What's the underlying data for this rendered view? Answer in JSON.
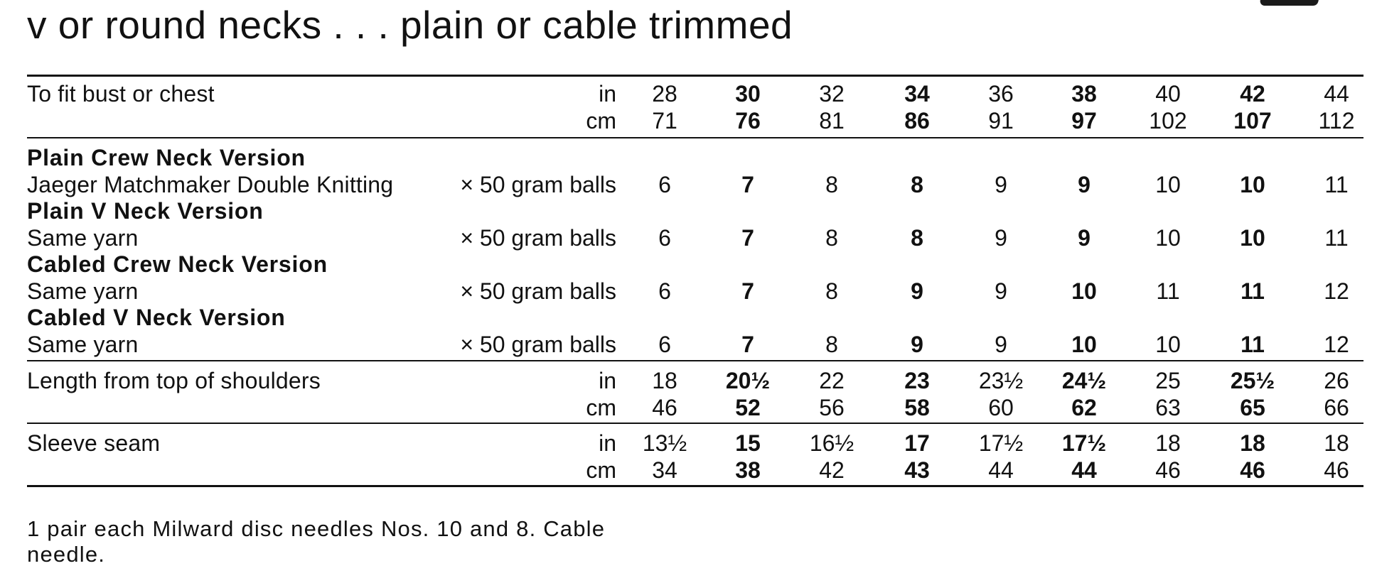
{
  "title": "v or round necks . . . plain or cable trimmed",
  "columns": 9,
  "bold_columns": [
    1,
    3,
    5,
    7
  ],
  "fit": {
    "label": "To fit bust or chest",
    "in_unit": "in",
    "cm_unit": "cm",
    "in": [
      "28",
      "30",
      "32",
      "34",
      "36",
      "38",
      "40",
      "42",
      "44"
    ],
    "cm": [
      "71",
      "76",
      "81",
      "86",
      "91",
      "97",
      "102",
      "107",
      "112"
    ]
  },
  "versions": [
    {
      "heading": "Plain Crew Neck Version",
      "yarn": "Jaeger Matchmaker Double Knitting",
      "qty": "× 50 gram balls",
      "values": [
        "6",
        "7",
        "8",
        "8",
        "9",
        "9",
        "10",
        "10",
        "11"
      ]
    },
    {
      "heading": "Plain V Neck Version",
      "yarn": "Same yarn",
      "qty": "× 50 gram balls",
      "values": [
        "6",
        "7",
        "8",
        "8",
        "9",
        "9",
        "10",
        "10",
        "11"
      ]
    },
    {
      "heading": "Cabled Crew Neck Version",
      "yarn": "Same yarn",
      "qty": "× 50 gram balls",
      "values": [
        "6",
        "7",
        "8",
        "9",
        "9",
        "10",
        "11",
        "11",
        "12"
      ]
    },
    {
      "heading": "Cabled V Neck Version",
      "yarn": "Same yarn",
      "qty": "× 50 gram balls",
      "values": [
        "6",
        "7",
        "8",
        "9",
        "9",
        "10",
        "10",
        "11",
        "12"
      ]
    }
  ],
  "length": {
    "label": "Length from top of shoulders",
    "in_unit": "in",
    "cm_unit": "cm",
    "in": [
      "18",
      "20½",
      "22",
      "23",
      "23½",
      "24½",
      "25",
      "25½",
      "26"
    ],
    "cm": [
      "46",
      "52",
      "56",
      "58",
      "60",
      "62",
      "63",
      "65",
      "66"
    ]
  },
  "sleeve": {
    "label": "Sleeve seam",
    "in_unit": "in",
    "cm_unit": "cm",
    "in": [
      "13½",
      "15",
      "16½",
      "17",
      "17½",
      "17½",
      "18",
      "18",
      "18"
    ],
    "cm": [
      "34",
      "38",
      "42",
      "43",
      "44",
      "44",
      "46",
      "46",
      "46"
    ]
  },
  "needles": {
    "line1": "1 pair each Milward disc needles Nos. 10 and 8. Cable",
    "line2": "needle."
  }
}
